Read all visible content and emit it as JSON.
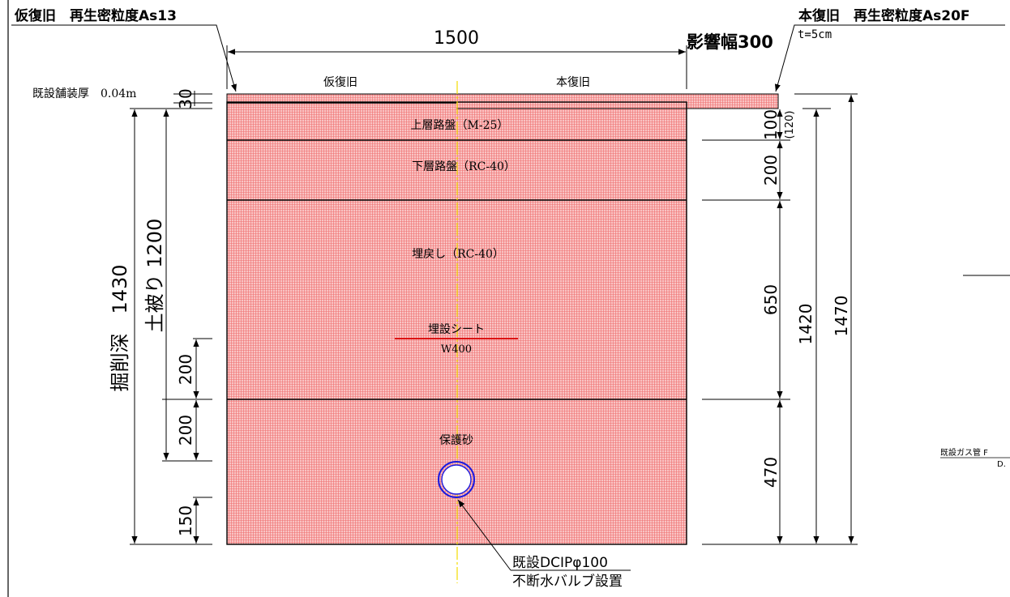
{
  "headers": {
    "temp_restoration": "仮復旧　再生密粒度As13",
    "main_restoration": "本復旧　再生密粒度As20F",
    "thickness": "t=5cm"
  },
  "top_dims": {
    "width_1500": "1500",
    "influence_width": "影響幅300"
  },
  "surface_labels": {
    "temp": "仮復旧",
    "main": "本復旧",
    "existing_pavement": "既設舗装厚　0.04m"
  },
  "layers": {
    "upper_base": "上層路盤（M-25）",
    "lower_base": "下層路盤（RC-40）",
    "backfill": "埋戻し（RC-40）",
    "marker_sheet": "埋設シート",
    "marker_width": "W400",
    "sand": "保護砂"
  },
  "left_dims": {
    "d30": "30",
    "excavation": "掘削深　1430",
    "cover": "土被り 1200",
    "d200a": "200",
    "d200b": "200",
    "d150": "150"
  },
  "right_dims": {
    "d100": "100",
    "d120": "(120)",
    "d200": "200",
    "d650": "650",
    "d470": "470",
    "d1420": "1420",
    "d1470": "1470"
  },
  "pipe": {
    "line1": "既設DCIPφ100",
    "line2": "不断水バルブ設置"
  },
  "edge_labels": {
    "gas_pipe": "既設ガス管 F",
    "gas_depth": "D."
  },
  "colors": {
    "hatch_fill": "#f9c4c4",
    "hatch_line": "#ef6e6e",
    "centerline": "#f2dc00",
    "marker_line": "#d80000",
    "pipe": "#1a1ae0"
  }
}
